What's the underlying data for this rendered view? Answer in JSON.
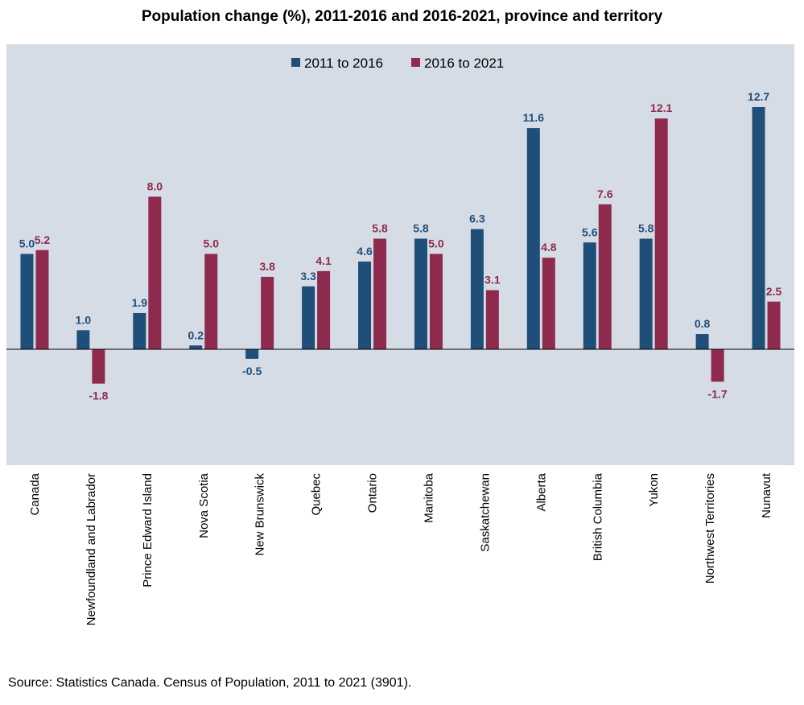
{
  "title": "Population change (%), 2011-2016 and 2016-2021, province and territory",
  "source": "Source: Statistics Canada. Census of Population, 2011 to 2021 (3901).",
  "colors": {
    "series1": "#1f4e79",
    "series2": "#8e2a4e",
    "plot_bg": "#d6dce5"
  },
  "chart_data": {
    "type": "bar",
    "title": "Population change (%), 2011-2016 and 2016-2021, province and territory",
    "categories": [
      "Canada",
      "Newfoundland and Labrador",
      "Prince Edward Island",
      "Nova Scotia",
      "New Brunswick",
      "Quebec",
      "Ontario",
      "Manitoba",
      "Saskatchewan",
      "Alberta",
      "British Columbia",
      "Yukon",
      "Northwest Territories",
      "Nunavut"
    ],
    "series": [
      {
        "name": "2011 to 2016",
        "values": [
          5.0,
          1.0,
          1.9,
          0.2,
          -0.5,
          3.3,
          4.6,
          5.8,
          6.3,
          11.6,
          5.6,
          5.8,
          0.8,
          12.7
        ]
      },
      {
        "name": "2016 to 2021",
        "values": [
          5.2,
          -1.8,
          8.0,
          5.0,
          3.8,
          4.1,
          5.8,
          5.0,
          3.1,
          4.8,
          7.6,
          12.1,
          -1.7,
          2.5
        ]
      }
    ],
    "ylim": [
      -6,
      16.5
    ],
    "legend": "top-center",
    "grid": false
  }
}
